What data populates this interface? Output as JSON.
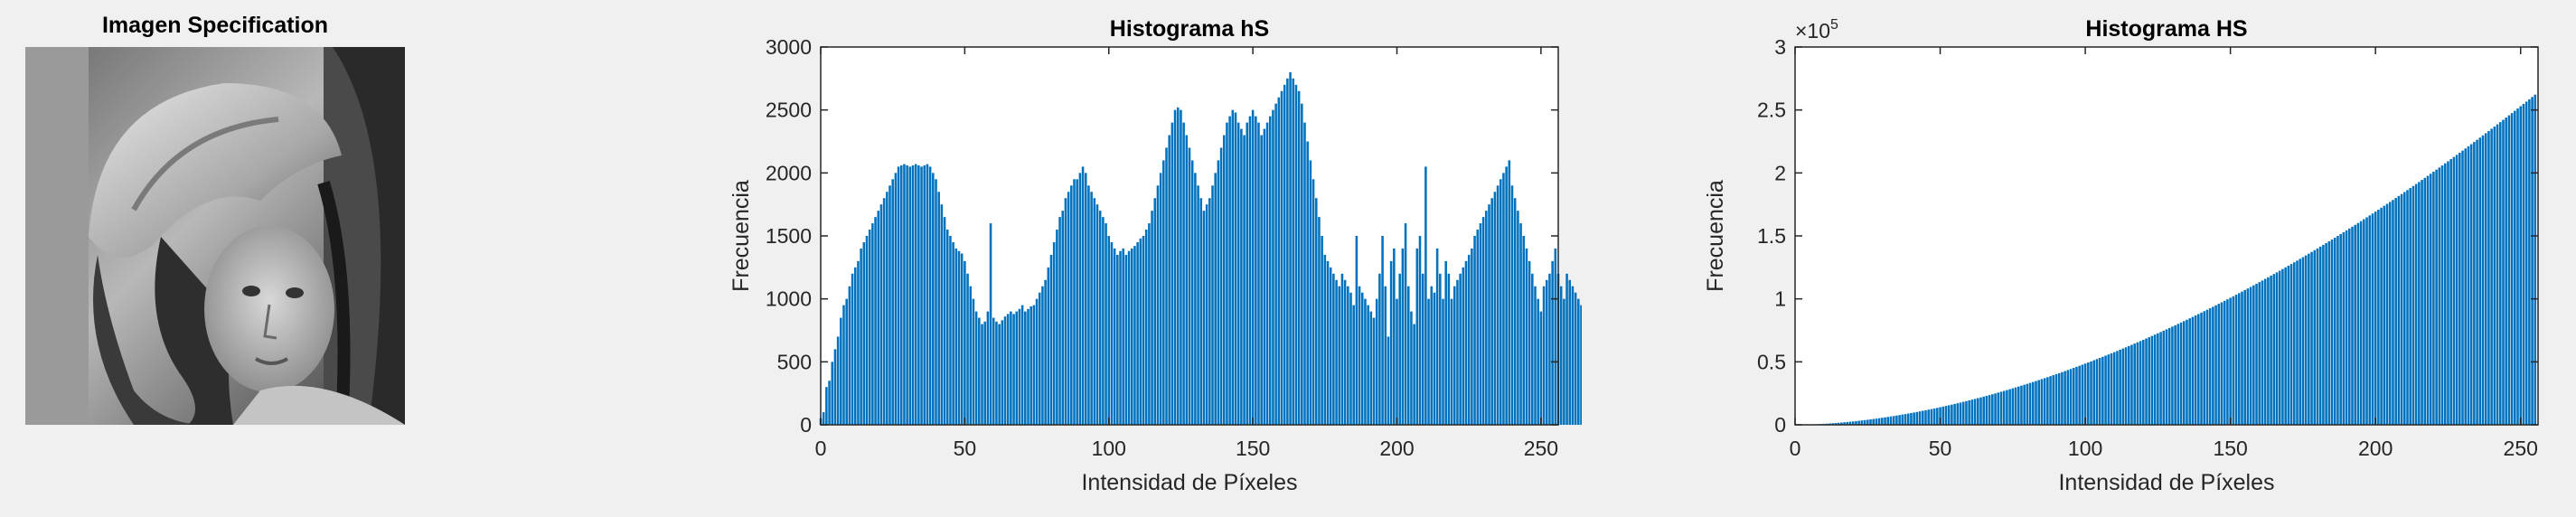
{
  "image_panel": {
    "title": "Imagen Specification"
  },
  "chart_data": [
    {
      "type": "bar",
      "title": "Histograma hS",
      "xlabel": "Intensidad de Píxeles",
      "ylabel": "Frecuencia",
      "xlim": [
        0,
        256
      ],
      "ylim": [
        0,
        3000
      ],
      "xticks": [
        "0",
        "50",
        "100",
        "150",
        "200",
        "250"
      ],
      "yticks": [
        "0",
        "500",
        "1000",
        "1500",
        "2000",
        "2500",
        "3000"
      ],
      "bar_color": "#0072bd",
      "values": [
        50,
        100,
        300,
        350,
        500,
        600,
        700,
        850,
        950,
        1000,
        1100,
        1200,
        1250,
        1300,
        1400,
        1450,
        1500,
        1550,
        1600,
        1650,
        1700,
        1750,
        1800,
        1850,
        1900,
        1950,
        2000,
        2050,
        2060,
        2070,
        2060,
        2050,
        2060,
        2070,
        2060,
        2050,
        2060,
        2070,
        2050,
        2000,
        1950,
        1850,
        1750,
        1650,
        1550,
        1500,
        1450,
        1400,
        1380,
        1360,
        1300,
        1200,
        1100,
        1000,
        900,
        850,
        800,
        820,
        900,
        1600,
        850,
        820,
        800,
        830,
        860,
        880,
        900,
        880,
        900,
        920,
        950,
        900,
        920,
        940,
        950,
        1000,
        1050,
        1100,
        1150,
        1250,
        1350,
        1450,
        1550,
        1650,
        1700,
        1800,
        1850,
        1900,
        1950,
        1950,
        2000,
        2050,
        2000,
        1900,
        1850,
        1800,
        1750,
        1700,
        1650,
        1600,
        1500,
        1450,
        1400,
        1350,
        1380,
        1400,
        1350,
        1380,
        1400,
        1420,
        1450,
        1480,
        1500,
        1550,
        1600,
        1700,
        1800,
        1900,
        2000,
        2100,
        2200,
        2300,
        2400,
        2500,
        2520,
        2500,
        2400,
        2300,
        2200,
        2100,
        2000,
        1900,
        1800,
        1700,
        1750,
        1800,
        1900,
        2000,
        2100,
        2200,
        2300,
        2400,
        2450,
        2500,
        2480,
        2400,
        2350,
        2300,
        2400,
        2450,
        2500,
        2450,
        2400,
        2300,
        2350,
        2400,
        2450,
        2500,
        2550,
        2600,
        2650,
        2700,
        2750,
        2800,
        2750,
        2700,
        2650,
        2550,
        2400,
        2250,
        2100,
        1950,
        1800,
        1650,
        1500,
        1350,
        1300,
        1250,
        1200,
        1150,
        1100,
        1200,
        1150,
        1100,
        1050,
        950,
        1500,
        1100,
        1050,
        1000,
        950,
        900,
        850,
        1000,
        1200,
        1500,
        1100,
        700,
        1300,
        1400,
        1000,
        1200,
        1400,
        1600,
        1100,
        900,
        800,
        1400,
        1500,
        1200,
        2050,
        1000,
        1100,
        1050,
        1400,
        1200,
        1000,
        1300,
        1200,
        1000,
        1100,
        1150,
        1200,
        1250,
        1300,
        1350,
        1400,
        1500,
        1550,
        1600,
        1650,
        1700,
        1750,
        1800,
        1850,
        1900,
        1950,
        2000,
        2050,
        2100,
        1900,
        1800,
        1700,
        1600,
        1500,
        1400,
        1300,
        1200,
        1100,
        1000,
        900,
        1100,
        1150,
        1200,
        1300,
        1400,
        1200,
        1100,
        1000,
        1200,
        1150,
        1100,
        1050,
        1000,
        950,
        1000,
        1050,
        1100,
        1150,
        1200,
        1250,
        1300
      ]
    },
    {
      "type": "bar",
      "title": "Histograma HS",
      "xlabel": "Intensidad de Píxeles",
      "ylabel": "Frecuencia",
      "xlim": [
        0,
        256
      ],
      "ylim": [
        0,
        300000
      ],
      "exponent_label": "×10",
      "exponent_power": "5",
      "xticks": [
        "0",
        "50",
        "100",
        "150",
        "200",
        "250"
      ],
      "yticks": [
        "0",
        "0.5",
        "1",
        "1.5",
        "2",
        "2.5",
        "3"
      ],
      "bar_color": "#0072bd",
      "values_formula_note": "cumulative histogram, quadratic-like growth to ~262144 at 255",
      "values": []
    }
  ]
}
